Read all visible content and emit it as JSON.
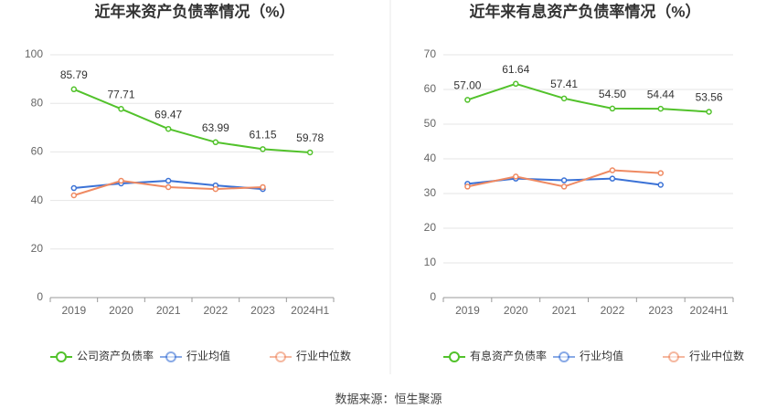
{
  "chart_data": [
    {
      "type": "line",
      "title": "近年来资产负债率情况（%）",
      "categories": [
        "2019",
        "2020",
        "2021",
        "2022",
        "2023",
        "2024H1"
      ],
      "series": [
        {
          "name": "公司资产负债率",
          "color": "#52c22b",
          "values": [
            85.79,
            77.71,
            69.47,
            63.99,
            61.15,
            59.78
          ],
          "value_labels": [
            "85.79",
            "77.71",
            "69.47",
            "63.99",
            "61.15",
            "59.78"
          ]
        },
        {
          "name": "行业均值",
          "color": "#3b72d6",
          "values": [
            45.1,
            47.0,
            48.1,
            46.2,
            44.7,
            null
          ]
        },
        {
          "name": "行业中位数",
          "color": "#ef8a62",
          "values": [
            42.1,
            48.1,
            45.5,
            44.7,
            45.5,
            null
          ]
        }
      ],
      "ylim": [
        0,
        100
      ],
      "yticks": [
        0,
        20,
        40,
        60,
        80,
        100
      ],
      "grid": true,
      "legend": "bottom"
    },
    {
      "type": "line",
      "title": "近年来有息资产负债率情况（%）",
      "categories": [
        "2019",
        "2020",
        "2021",
        "2022",
        "2023",
        "2024H1"
      ],
      "series": [
        {
          "name": "有息资产负债率",
          "color": "#52c22b",
          "values": [
            57.0,
            61.64,
            57.41,
            54.5,
            54.44,
            53.56
          ],
          "value_labels": [
            "57.00",
            "61.64",
            "57.41",
            "54.50",
            "54.44",
            "53.56"
          ]
        },
        {
          "name": "行业均值",
          "color": "#3b72d6",
          "values": [
            32.8,
            34.3,
            33.8,
            34.3,
            32.5,
            null
          ]
        },
        {
          "name": "行业中位数",
          "color": "#ef8a62",
          "values": [
            32.0,
            34.9,
            32.0,
            36.7,
            35.9,
            null
          ]
        }
      ],
      "ylim": [
        0,
        70
      ],
      "yticks": [
        0,
        10,
        20,
        30,
        40,
        50,
        60,
        70
      ],
      "grid": true,
      "legend": "bottom"
    }
  ],
  "source": "数据来源：恒生聚源"
}
